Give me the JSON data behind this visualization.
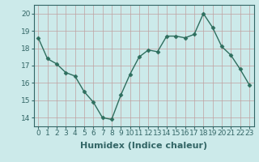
{
  "x": [
    0,
    1,
    2,
    3,
    4,
    5,
    6,
    7,
    8,
    9,
    10,
    11,
    12,
    13,
    14,
    15,
    16,
    17,
    18,
    19,
    20,
    21,
    22,
    23
  ],
  "y": [
    18.6,
    17.4,
    17.1,
    16.6,
    16.4,
    15.5,
    14.9,
    14.0,
    13.9,
    15.3,
    16.5,
    17.5,
    17.9,
    17.8,
    18.7,
    18.7,
    18.6,
    18.8,
    20.0,
    19.2,
    18.1,
    17.6,
    16.8,
    15.9
  ],
  "line_color": "#2e6e5e",
  "marker": "D",
  "marker_size": 2.5,
  "line_width": 1.0,
  "bg_color": "#cceaea",
  "grid_color": "#c0a0a0",
  "xlabel": "Humidex (Indice chaleur)",
  "ylim": [
    13.5,
    20.5
  ],
  "xlim": [
    -0.5,
    23.5
  ],
  "yticks": [
    14,
    15,
    16,
    17,
    18,
    19,
    20
  ],
  "xticks": [
    0,
    1,
    2,
    3,
    4,
    5,
    6,
    7,
    8,
    9,
    10,
    11,
    12,
    13,
    14,
    15,
    16,
    17,
    18,
    19,
    20,
    21,
    22,
    23
  ],
  "xtick_labels": [
    "0",
    "1",
    "2",
    "3",
    "4",
    "5",
    "6",
    "7",
    "8",
    "9",
    "10",
    "11",
    "12",
    "13",
    "14",
    "15",
    "16",
    "17",
    "18",
    "19",
    "20",
    "21",
    "22",
    "23"
  ],
  "tick_fontsize": 6.5,
  "xlabel_fontsize": 8,
  "axis_color": "#336666"
}
